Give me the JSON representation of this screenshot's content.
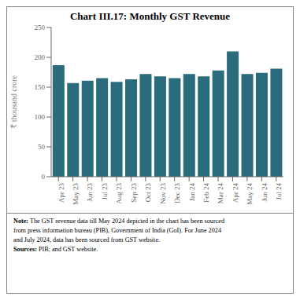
{
  "chart_data": {
    "type": "bar",
    "title": "Chart III.17: Monthly GST Revenue",
    "categories": [
      "Apr 23",
      "May 23",
      "Jun 23",
      "Jul 23",
      "Aug 23",
      "Sep 23",
      "Oct 23",
      "Nov 23",
      "Dec 23",
      "Jan 24",
      "Feb 24",
      "Mar 24",
      "Apr 24",
      "May 24",
      "Jun 24",
      "Jul 24"
    ],
    "values": [
      187,
      157,
      161,
      165,
      159,
      163,
      172,
      168,
      165,
      172,
      168,
      178,
      210,
      172,
      174,
      181
    ],
    "color": "#2a6b7c",
    "ylabel": "₹ thousand crore",
    "ylim": [
      0,
      250
    ],
    "yticks": [
      0,
      50,
      100,
      150,
      200,
      250
    ],
    "grid": false,
    "annotations": [
      {
        "label": "Note:",
        "text": "The GST revenue data till May 2024 depicted in the chart has been sourced\nfrom press information bureau (PIB), Government of India (GoI). For June 2024\nand July 2024, data has been sourced from GST website."
      },
      {
        "label": "Sources:",
        "text": "PIB; and GST website."
      }
    ]
  }
}
